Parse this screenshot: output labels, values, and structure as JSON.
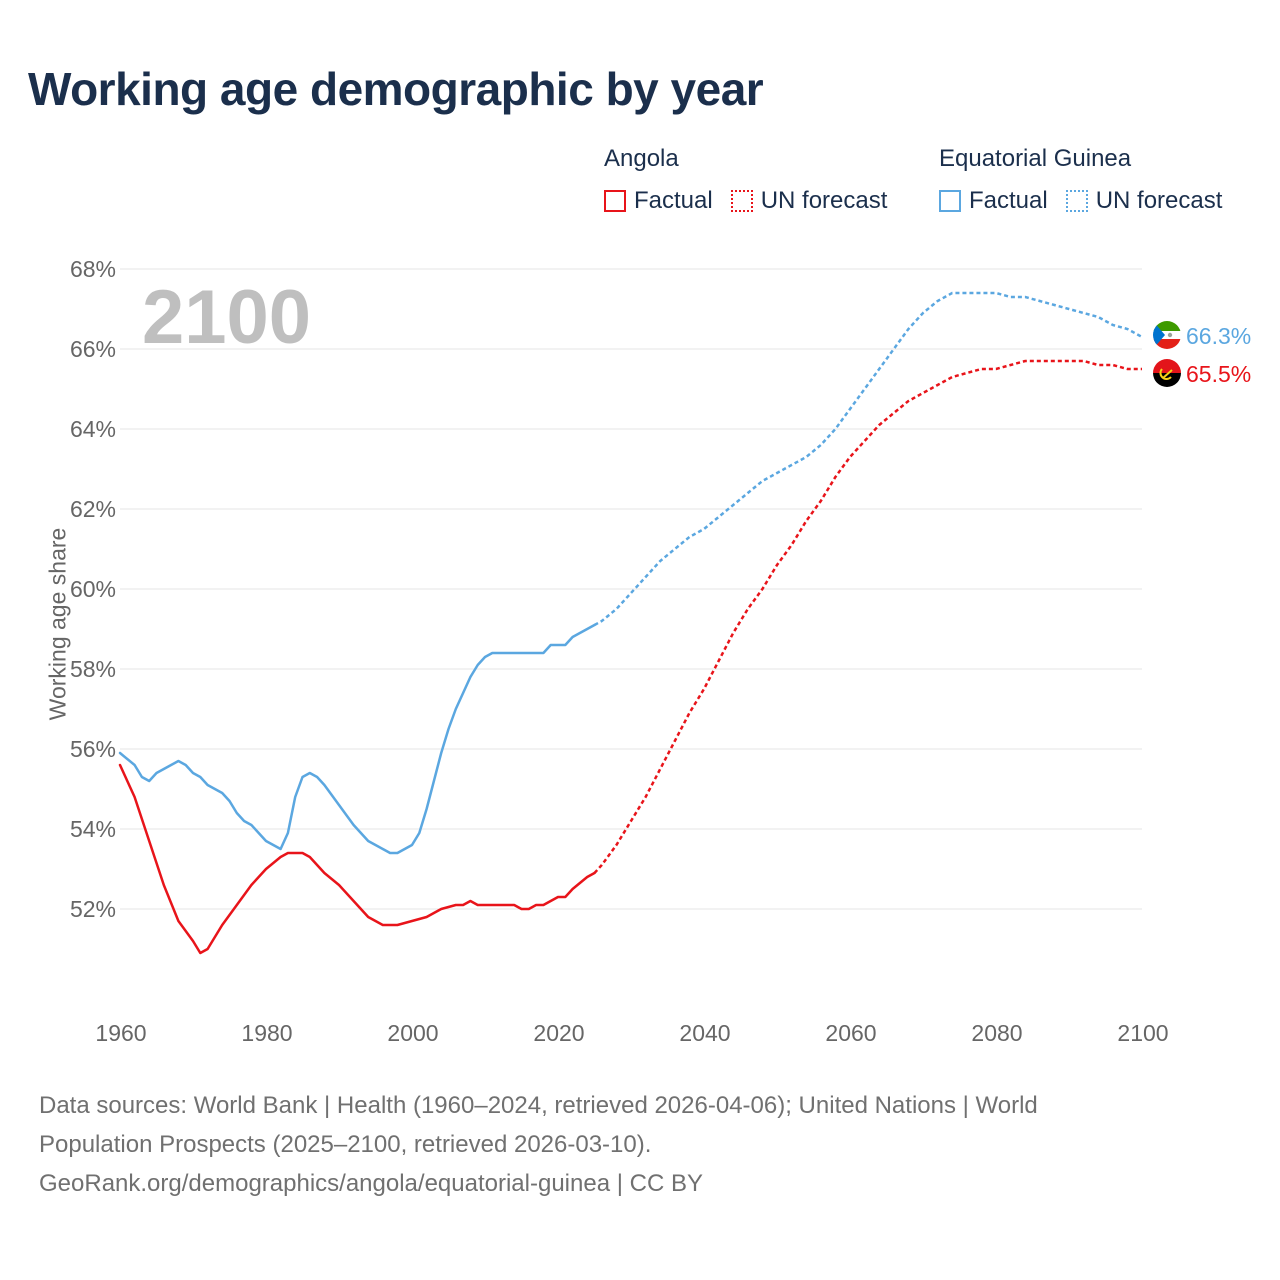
{
  "title": "Working age demographic by year",
  "legend": {
    "groups": [
      {
        "country": "Angola",
        "factual_label": "Factual",
        "forecast_label": "UN forecast",
        "color": "#e8141a"
      },
      {
        "country": "Equatorial Guinea",
        "factual_label": "Factual",
        "forecast_label": "UN forecast",
        "color": "#5ba7e0"
      }
    ]
  },
  "year_watermark": "2100",
  "footer": {
    "line1": "Data sources: World Bank | Health (1960–2024, retrieved 2026-04-06); United Nations | World",
    "line2": "Population Prospects (2025–2100, retrieved 2026-03-10).",
    "line3": "GeoRank.org/demographics/angola/equatorial-guinea | CC BY"
  },
  "chart_data": {
    "type": "line",
    "title": "Working age demographic by year",
    "xlabel": "",
    "ylabel": "Working age share",
    "xlim": [
      1960,
      2100
    ],
    "ylim": [
      50,
      68
    ],
    "grid": true,
    "x_ticks": [
      {
        "value": 1960,
        "label": "1960"
      },
      {
        "value": 1980,
        "label": "1980"
      },
      {
        "value": 2000,
        "label": "2000"
      },
      {
        "value": 2020,
        "label": "2020"
      },
      {
        "value": 2040,
        "label": "2040"
      },
      {
        "value": 2060,
        "label": "2060"
      },
      {
        "value": 2080,
        "label": "2080"
      },
      {
        "value": 2100,
        "label": "2100"
      }
    ],
    "y_ticks": [
      {
        "value": 52,
        "label": "52%"
      },
      {
        "value": 54,
        "label": "54%"
      },
      {
        "value": 56,
        "label": "56%"
      },
      {
        "value": 58,
        "label": "58%"
      },
      {
        "value": 60,
        "label": "60%"
      },
      {
        "value": 62,
        "label": "62%"
      },
      {
        "value": 64,
        "label": "64%"
      },
      {
        "value": 66,
        "label": "66%"
      },
      {
        "value": 68,
        "label": "68%"
      }
    ],
    "forecast_start": 2025,
    "series": [
      {
        "name": "Angola",
        "color": "#e8141a",
        "end_label": "65.5%",
        "flag": "angola-flag",
        "points": [
          [
            1960,
            55.6
          ],
          [
            1962,
            54.8
          ],
          [
            1964,
            53.7
          ],
          [
            1966,
            52.6
          ],
          [
            1968,
            51.7
          ],
          [
            1970,
            51.2
          ],
          [
            1971,
            50.9
          ],
          [
            1972,
            51.0
          ],
          [
            1974,
            51.6
          ],
          [
            1976,
            52.1
          ],
          [
            1978,
            52.6
          ],
          [
            1980,
            53.0
          ],
          [
            1982,
            53.3
          ],
          [
            1983,
            53.4
          ],
          [
            1985,
            53.4
          ],
          [
            1986,
            53.3
          ],
          [
            1988,
            52.9
          ],
          [
            1990,
            52.6
          ],
          [
            1992,
            52.2
          ],
          [
            1994,
            51.8
          ],
          [
            1996,
            51.6
          ],
          [
            1998,
            51.6
          ],
          [
            2000,
            51.7
          ],
          [
            2002,
            51.8
          ],
          [
            2004,
            52.0
          ],
          [
            2006,
            52.1
          ],
          [
            2007,
            52.1
          ],
          [
            2008,
            52.2
          ],
          [
            2009,
            52.1
          ],
          [
            2012,
            52.1
          ],
          [
            2014,
            52.1
          ],
          [
            2015,
            52.0
          ],
          [
            2016,
            52.0
          ],
          [
            2017,
            52.1
          ],
          [
            2018,
            52.1
          ],
          [
            2020,
            52.3
          ],
          [
            2021,
            52.3
          ],
          [
            2022,
            52.5
          ],
          [
            2024,
            52.8
          ],
          [
            2025,
            52.9
          ],
          [
            2026,
            53.1
          ],
          [
            2028,
            53.6
          ],
          [
            2030,
            54.2
          ],
          [
            2032,
            54.8
          ],
          [
            2034,
            55.5
          ],
          [
            2036,
            56.2
          ],
          [
            2038,
            56.9
          ],
          [
            2040,
            57.5
          ],
          [
            2042,
            58.2
          ],
          [
            2044,
            58.9
          ],
          [
            2046,
            59.5
          ],
          [
            2048,
            60.0
          ],
          [
            2050,
            60.6
          ],
          [
            2052,
            61.1
          ],
          [
            2054,
            61.7
          ],
          [
            2056,
            62.2
          ],
          [
            2058,
            62.8
          ],
          [
            2060,
            63.3
          ],
          [
            2062,
            63.7
          ],
          [
            2064,
            64.1
          ],
          [
            2066,
            64.4
          ],
          [
            2068,
            64.7
          ],
          [
            2070,
            64.9
          ],
          [
            2072,
            65.1
          ],
          [
            2074,
            65.3
          ],
          [
            2076,
            65.4
          ],
          [
            2078,
            65.5
          ],
          [
            2080,
            65.5
          ],
          [
            2082,
            65.6
          ],
          [
            2084,
            65.7
          ],
          [
            2086,
            65.7
          ],
          [
            2088,
            65.7
          ],
          [
            2090,
            65.7
          ],
          [
            2092,
            65.7
          ],
          [
            2094,
            65.6
          ],
          [
            2096,
            65.6
          ],
          [
            2098,
            65.5
          ],
          [
            2100,
            65.5
          ]
        ]
      },
      {
        "name": "Equatorial Guinea",
        "color": "#5ba7e0",
        "end_label": "66.3%",
        "flag": "equatorial-guinea-flag",
        "points": [
          [
            1960,
            55.9
          ],
          [
            1962,
            55.6
          ],
          [
            1963,
            55.3
          ],
          [
            1964,
            55.2
          ],
          [
            1965,
            55.4
          ],
          [
            1967,
            55.6
          ],
          [
            1968,
            55.7
          ],
          [
            1969,
            55.6
          ],
          [
            1970,
            55.4
          ],
          [
            1971,
            55.3
          ],
          [
            1972,
            55.1
          ],
          [
            1974,
            54.9
          ],
          [
            1975,
            54.7
          ],
          [
            1976,
            54.4
          ],
          [
            1977,
            54.2
          ],
          [
            1978,
            54.1
          ],
          [
            1980,
            53.7
          ],
          [
            1981,
            53.6
          ],
          [
            1982,
            53.5
          ],
          [
            1983,
            53.9
          ],
          [
            1984,
            54.8
          ],
          [
            1985,
            55.3
          ],
          [
            1986,
            55.4
          ],
          [
            1987,
            55.3
          ],
          [
            1988,
            55.1
          ],
          [
            1990,
            54.6
          ],
          [
            1992,
            54.1
          ],
          [
            1994,
            53.7
          ],
          [
            1996,
            53.5
          ],
          [
            1997,
            53.4
          ],
          [
            1998,
            53.4
          ],
          [
            2000,
            53.6
          ],
          [
            2001,
            53.9
          ],
          [
            2002,
            54.5
          ],
          [
            2003,
            55.2
          ],
          [
            2004,
            55.9
          ],
          [
            2005,
            56.5
          ],
          [
            2006,
            57.0
          ],
          [
            2007,
            57.4
          ],
          [
            2008,
            57.8
          ],
          [
            2009,
            58.1
          ],
          [
            2010,
            58.3
          ],
          [
            2011,
            58.4
          ],
          [
            2014,
            58.4
          ],
          [
            2018,
            58.4
          ],
          [
            2019,
            58.6
          ],
          [
            2021,
            58.6
          ],
          [
            2022,
            58.8
          ],
          [
            2024,
            59.0
          ],
          [
            2025,
            59.1
          ],
          [
            2026,
            59.2
          ],
          [
            2028,
            59.5
          ],
          [
            2030,
            59.9
          ],
          [
            2032,
            60.3
          ],
          [
            2034,
            60.7
          ],
          [
            2036,
            61.0
          ],
          [
            2038,
            61.3
          ],
          [
            2040,
            61.5
          ],
          [
            2042,
            61.8
          ],
          [
            2044,
            62.1
          ],
          [
            2046,
            62.4
          ],
          [
            2048,
            62.7
          ],
          [
            2050,
            62.9
          ],
          [
            2052,
            63.1
          ],
          [
            2054,
            63.3
          ],
          [
            2056,
            63.6
          ],
          [
            2058,
            64.0
          ],
          [
            2060,
            64.5
          ],
          [
            2062,
            65.0
          ],
          [
            2064,
            65.5
          ],
          [
            2066,
            66.0
          ],
          [
            2068,
            66.5
          ],
          [
            2070,
            66.9
          ],
          [
            2072,
            67.2
          ],
          [
            2074,
            67.4
          ],
          [
            2076,
            67.4
          ],
          [
            2078,
            67.4
          ],
          [
            2080,
            67.4
          ],
          [
            2082,
            67.3
          ],
          [
            2084,
            67.3
          ],
          [
            2086,
            67.2
          ],
          [
            2088,
            67.1
          ],
          [
            2090,
            67.0
          ],
          [
            2092,
            66.9
          ],
          [
            2094,
            66.8
          ],
          [
            2096,
            66.6
          ],
          [
            2098,
            66.5
          ],
          [
            2100,
            66.3
          ]
        ]
      }
    ]
  }
}
